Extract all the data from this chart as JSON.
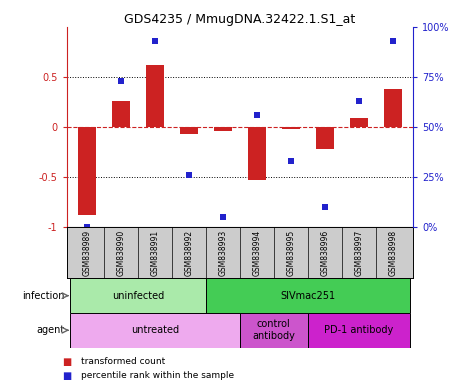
{
  "title": "GDS4235 / MmugDNA.32422.1.S1_at",
  "samples": [
    "GSM838989",
    "GSM838990",
    "GSM838991",
    "GSM838992",
    "GSM838993",
    "GSM838994",
    "GSM838995",
    "GSM838996",
    "GSM838997",
    "GSM838998"
  ],
  "bar_values": [
    -0.88,
    0.26,
    0.62,
    -0.07,
    -0.04,
    -0.53,
    -0.02,
    -0.22,
    0.09,
    0.38
  ],
  "scatter_pct": [
    0.0,
    73.0,
    93.0,
    26.0,
    5.0,
    56.0,
    33.0,
    10.0,
    63.0,
    93.0
  ],
  "bar_color": "#cc2222",
  "scatter_color": "#2222cc",
  "ylim": [
    -1.0,
    1.0
  ],
  "y2lim": [
    0,
    100
  ],
  "yticks": [
    -1.0,
    -0.5,
    0.0,
    0.5
  ],
  "ytick_labels": [
    "-1",
    "-0.5",
    "0",
    "0.5"
  ],
  "y2ticks": [
    0,
    25,
    50,
    75,
    100
  ],
  "y2ticklabels": [
    "0%",
    "25%",
    "50%",
    "75%",
    "100%"
  ],
  "hline_y": 0.0,
  "dotted_lines": [
    -0.5,
    0.5
  ],
  "infection_row": [
    {
      "label": "uninfected",
      "start": 0,
      "end": 4,
      "color": "#aaeaaa"
    },
    {
      "label": "SIVmac251",
      "start": 4,
      "end": 10,
      "color": "#44cc55"
    }
  ],
  "agent_row": [
    {
      "label": "untreated",
      "start": 0,
      "end": 5,
      "color": "#eeaaee"
    },
    {
      "label": "control\nantibody",
      "start": 5,
      "end": 7,
      "color": "#cc55cc"
    },
    {
      "label": "PD-1 antibody",
      "start": 7,
      "end": 10,
      "color": "#cc22cc"
    }
  ],
  "infection_label": "infection",
  "agent_label": "agent",
  "legend_bar_label": "transformed count",
  "legend_scatter_label": "percentile rank within the sample",
  "background_color": "#ffffff",
  "sample_bg_color": "#cccccc"
}
